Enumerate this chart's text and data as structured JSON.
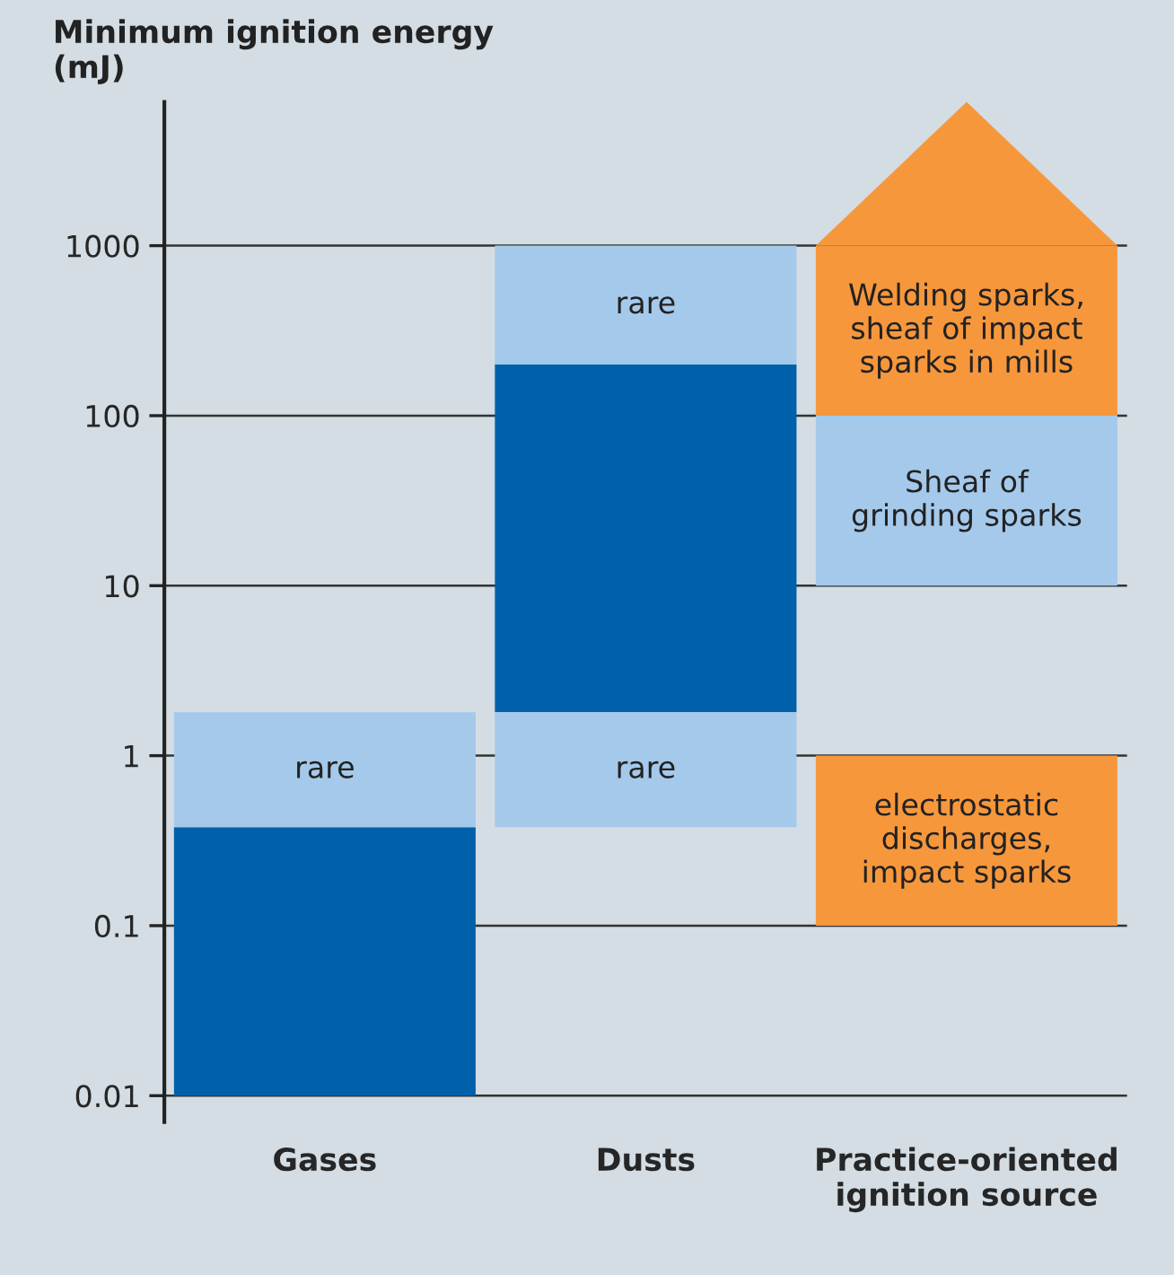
{
  "chart_data": {
    "type": "bar",
    "ylabel": "Minimum ignition energy\n(mJ)",
    "categories": [
      "Gases",
      "Dusts",
      "Practice-oriented\nignition source"
    ],
    "series": [
      {
        "color": "#0060a9",
        "base": [
          0.01,
          1.8,
          null
        ],
        "values": [
          0.37,
          198.2,
          null
        ],
        "value_labels": [
          null,
          null,
          null
        ]
      },
      {
        "color": "#a5c9eb",
        "base": [
          0.38,
          0.38,
          null
        ],
        "values": [
          1.42,
          1.42,
          null
        ],
        "value_labels": [
          "rare",
          "rare",
          null
        ]
      },
      {
        "color": "#a5c9eb",
        "base": [
          null,
          200,
          10
        ],
        "values": [
          null,
          800,
          90
        ],
        "value_labels": [
          null,
          "rare",
          "Sheaf of\ngrinding sparks"
        ]
      },
      {
        "color": "#f7973c",
        "base": [
          null,
          null,
          0.1
        ],
        "values": [
          null,
          null,
          0.9
        ],
        "value_labels": [
          null,
          null,
          "electrostatic\ndischarges,\nimpact sparks"
        ]
      },
      {
        "color": "#f7973c",
        "base": [
          null,
          null,
          100
        ],
        "values": [
          null,
          null,
          900
        ],
        "value_labels": [
          null,
          null,
          "Welding sparks,\nsheaf of impact\nsparks in mills"
        ]
      }
    ],
    "log": true,
    "ylim": [
      0.007,
      7000
    ],
    "yticks": [
      {
        "value": 0.01,
        "label": "0.01"
      },
      {
        "value": 0.1,
        "label": "0.1"
      },
      {
        "value": 1,
        "label": "1"
      },
      {
        "value": 10,
        "label": "10"
      },
      {
        "value": 100,
        "label": "100"
      },
      {
        "value": 1000,
        "label": "1000"
      }
    ],
    "grid": "y",
    "legend": false
  }
}
